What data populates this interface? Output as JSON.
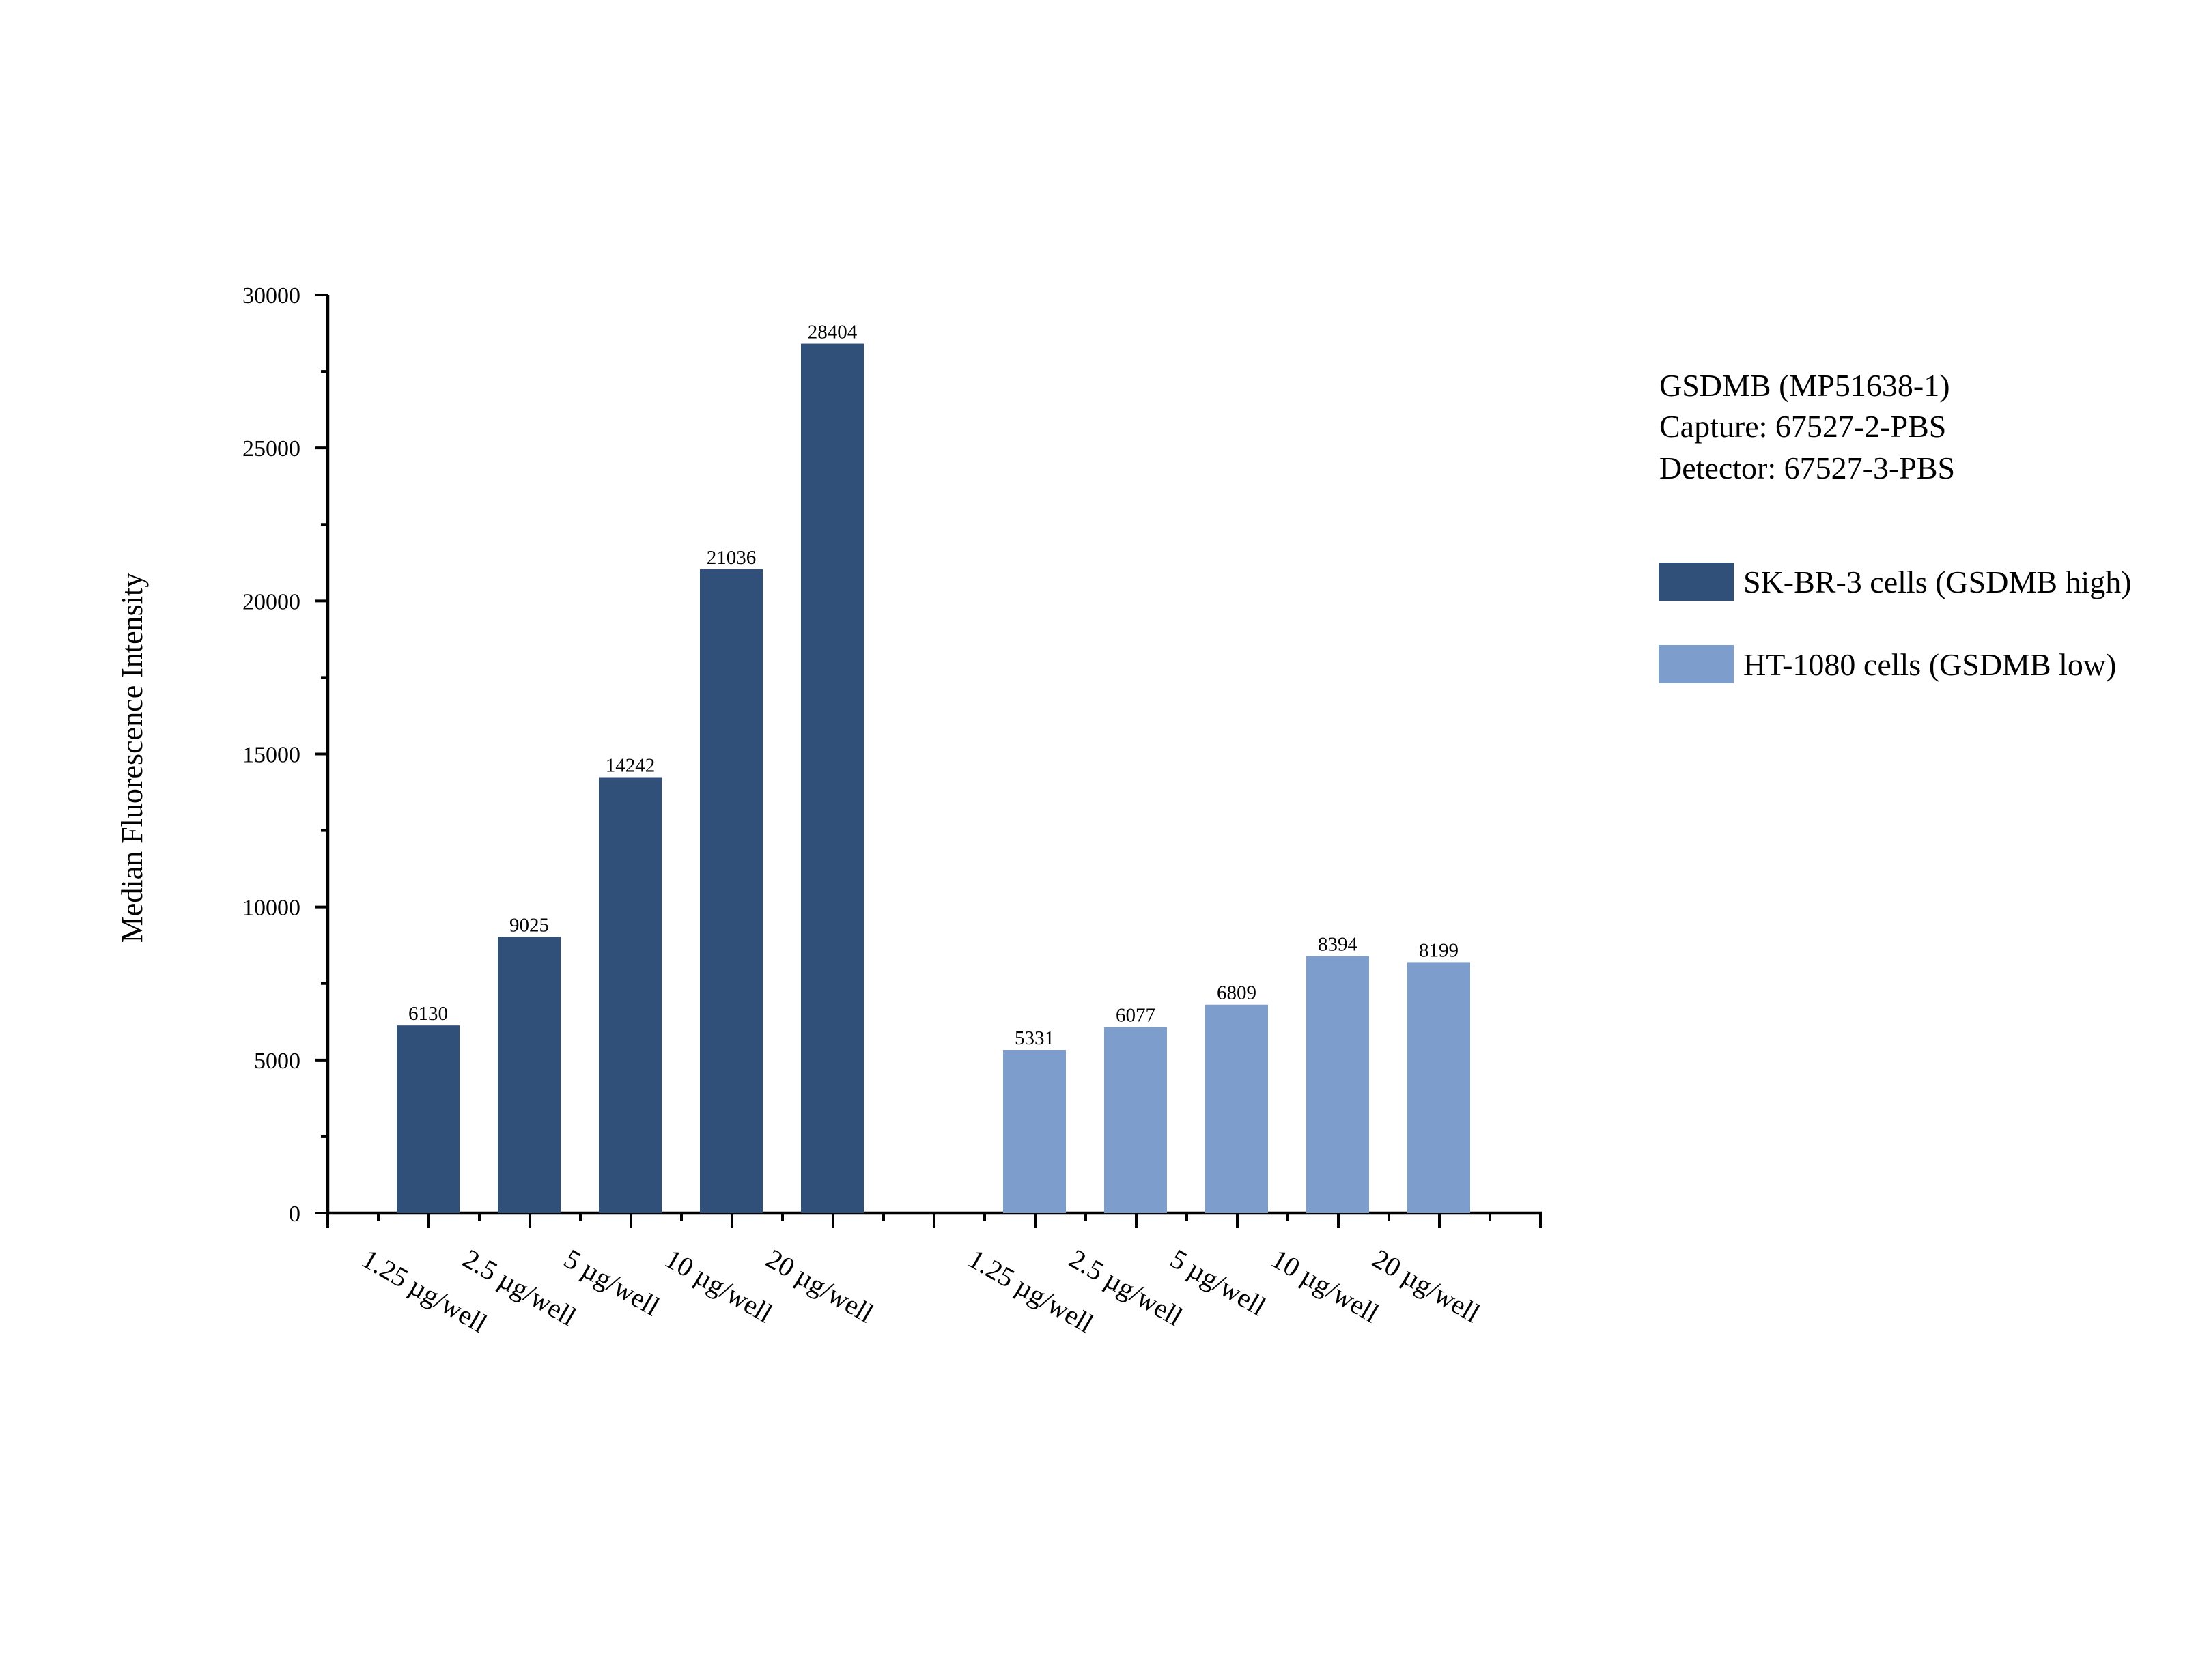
{
  "chart_data": {
    "type": "bar",
    "ylabel": "Median Fluorescence Intensity",
    "xlabel": "",
    "ylim": [
      0,
      30000
    ],
    "yticks": [
      0,
      5000,
      10000,
      15000,
      20000,
      25000,
      30000
    ],
    "grid": false,
    "legend_position": "top-right",
    "annotations": [
      "GSDMB (MP51638-1)",
      "Capture: 67527-2-PBS",
      "Detector: 67527-3-PBS"
    ],
    "series": [
      {
        "name": "SK-BR-3 cells (GSDMB high)",
        "color": "#304f79",
        "categories": [
          "1.25 µg/well",
          "2.5 µg/well",
          "5 µg/well",
          "10 µg/well",
          "20 µg/well"
        ],
        "values": [
          6130,
          9025,
          14242,
          21036,
          28404
        ]
      },
      {
        "name": "HT-1080 cells (GSDMB low)",
        "color": "#7d9ecc",
        "categories": [
          "1.25 µg/well",
          "2.5 µg/well",
          "5 µg/well",
          "10 µg/well",
          "20 µg/well"
        ],
        "values": [
          5331,
          6077,
          6809,
          8394,
          8199
        ]
      }
    ]
  }
}
